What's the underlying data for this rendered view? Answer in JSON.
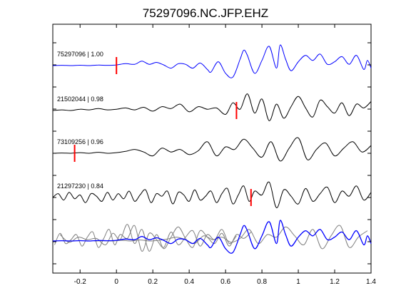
{
  "chart_data": {
    "type": "line",
    "title": "75297096.NC.JFP.EHZ",
    "xlabel": "",
    "ylabel": "",
    "xlim": [
      -0.35,
      1.4
    ],
    "x_ticks": [
      -0.2,
      0,
      0.2,
      0.4,
      0.6,
      0.8,
      1,
      1.2,
      1.4
    ],
    "x_tick_labels": [
      "-0.2",
      "0",
      "0.2",
      "0.4",
      "0.6",
      "0.8",
      "1",
      "1.2",
      "1.4"
    ],
    "grid": false,
    "colors": {
      "primary": "#0000ff",
      "secondary": "#000000",
      "overlay": "#808080",
      "pick": "#ff0000"
    },
    "traces": [
      {
        "label": "75297096 | 1.00",
        "color": "#0000ff",
        "pick": 0.0,
        "x": [
          -0.35,
          -0.3,
          -0.25,
          -0.2,
          -0.15,
          -0.1,
          -0.05,
          0,
          0.05,
          0.1,
          0.14,
          0.18,
          0.22,
          0.26,
          0.3,
          0.34,
          0.38,
          0.42,
          0.46,
          0.5,
          0.52,
          0.56,
          0.6,
          0.64,
          0.68,
          0.7,
          0.72,
          0.76,
          0.8,
          0.84,
          0.88,
          0.9,
          0.93,
          0.96,
          1,
          1.04,
          1.08,
          1.12,
          1.16,
          1.2,
          1.24,
          1.28,
          1.32,
          1.36,
          1.38,
          1.4
        ],
        "y": [
          0,
          0.02,
          0,
          0.03,
          0,
          0.04,
          0.02,
          0.05,
          0.15,
          0.1,
          0.35,
          0.1,
          0.25,
          0.05,
          -0.2,
          0.15,
          0.1,
          -0.2,
          0.2,
          -0.3,
          -0.5,
          0.3,
          -0.6,
          -0.9,
          0.5,
          1.2,
          0.8,
          -0.6,
          0.4,
          1.5,
          -0.2,
          1.6,
          0.5,
          -0.4,
          0.3,
          0.8,
          0.4,
          0.9,
          0.1,
          0.3,
          0.7,
          0.1,
          0.8,
          -0.3,
          0.4,
          -0.2
        ]
      },
      {
        "label": "21502044 | 0.98",
        "color": "#000000",
        "pick": 0.66,
        "x": [
          -0.35,
          -0.3,
          -0.25,
          -0.2,
          -0.15,
          -0.1,
          -0.05,
          0,
          0.05,
          0.1,
          0.15,
          0.2,
          0.25,
          0.3,
          0.35,
          0.4,
          0.45,
          0.5,
          0.55,
          0.6,
          0.64,
          0.68,
          0.72,
          0.76,
          0.8,
          0.84,
          0.88,
          0.92,
          0.96,
          1,
          1.04,
          1.08,
          1.12,
          1.16,
          1.2,
          1.24,
          1.28,
          1.32,
          1.36,
          1.4
        ],
        "y": [
          0,
          0.05,
          0,
          0.1,
          0.05,
          0.15,
          0.05,
          0.1,
          0.2,
          0.05,
          0.25,
          -0.05,
          0.3,
          0.15,
          0.5,
          -0.1,
          0.3,
          0.1,
          0.2,
          -0.3,
          0.6,
          0.1,
          1.3,
          -0.2,
          0.9,
          -0.8,
          0.5,
          -0.6,
          0.3,
          1.1,
          0.2,
          -0.5,
          0.8,
          0.3,
          -0.2,
          0.6,
          -0.4,
          0.5,
          0.2,
          0.7
        ]
      },
      {
        "label": "73109256 | 0.96",
        "color": "#000000",
        "pick": -0.23,
        "x": [
          -0.35,
          -0.3,
          -0.25,
          -0.2,
          -0.15,
          -0.1,
          -0.05,
          0,
          0.05,
          0.1,
          0.15,
          0.2,
          0.25,
          0.3,
          0.35,
          0.4,
          0.45,
          0.5,
          0.55,
          0.6,
          0.65,
          0.7,
          0.75,
          0.8,
          0.85,
          0.9,
          0.95,
          1,
          1.05,
          1.1,
          1.15,
          1.2,
          1.25,
          1.3,
          1.35,
          1.4
        ],
        "y": [
          0,
          0.02,
          0,
          0.05,
          0,
          0.08,
          0,
          0.05,
          0.15,
          0.3,
          0.1,
          -0.2,
          0.4,
          0.1,
          0.3,
          -0.1,
          0.2,
          0.9,
          -0.2,
          0.5,
          0.3,
          1.1,
          0.4,
          -0.3,
          0.9,
          -0.6,
          0.4,
          1.2,
          -0.5,
          0.3,
          0.8,
          -0.2,
          0.4,
          0.9,
          0.1,
          0.6
        ]
      },
      {
        "label": "21297230 | 0.84",
        "color": "#000000",
        "pick": 0.74,
        "x": [
          -0.35,
          -0.32,
          -0.29,
          -0.26,
          -0.23,
          -0.2,
          -0.17,
          -0.14,
          -0.11,
          -0.08,
          -0.05,
          -0.02,
          0.01,
          0.04,
          0.07,
          0.1,
          0.13,
          0.16,
          0.19,
          0.22,
          0.25,
          0.28,
          0.31,
          0.34,
          0.37,
          0.4,
          0.43,
          0.46,
          0.49,
          0.52,
          0.55,
          0.58,
          0.61,
          0.64,
          0.67,
          0.7,
          0.73,
          0.76,
          0.8,
          0.84,
          0.88,
          0.92,
          0.96,
          1,
          1.04,
          1.08,
          1.12,
          1.16,
          1.2,
          1.24,
          1.28,
          1.32,
          1.36,
          1.4
        ],
        "y": [
          0,
          0.3,
          -0.2,
          0.4,
          -0.1,
          0.2,
          -0.4,
          0.3,
          0.1,
          -0.3,
          0.4,
          -0.2,
          0.3,
          -0.1,
          0.5,
          -0.3,
          0.2,
          0.6,
          -0.4,
          0.3,
          0.1,
          0.5,
          -0.5,
          0.4,
          0.2,
          -0.3,
          0.6,
          -0.2,
          0.1,
          0.5,
          -0.4,
          0.3,
          0.7,
          -0.5,
          0.2,
          0.9,
          -0.3,
          0.5,
          0.2,
          1.2,
          -0.8,
          0.6,
          0.1,
          -0.5,
          0.7,
          -0.3,
          0.3,
          0.8,
          -0.4,
          0.5,
          0.1,
          0.9,
          -0.2,
          0.4
        ]
      }
    ]
  }
}
